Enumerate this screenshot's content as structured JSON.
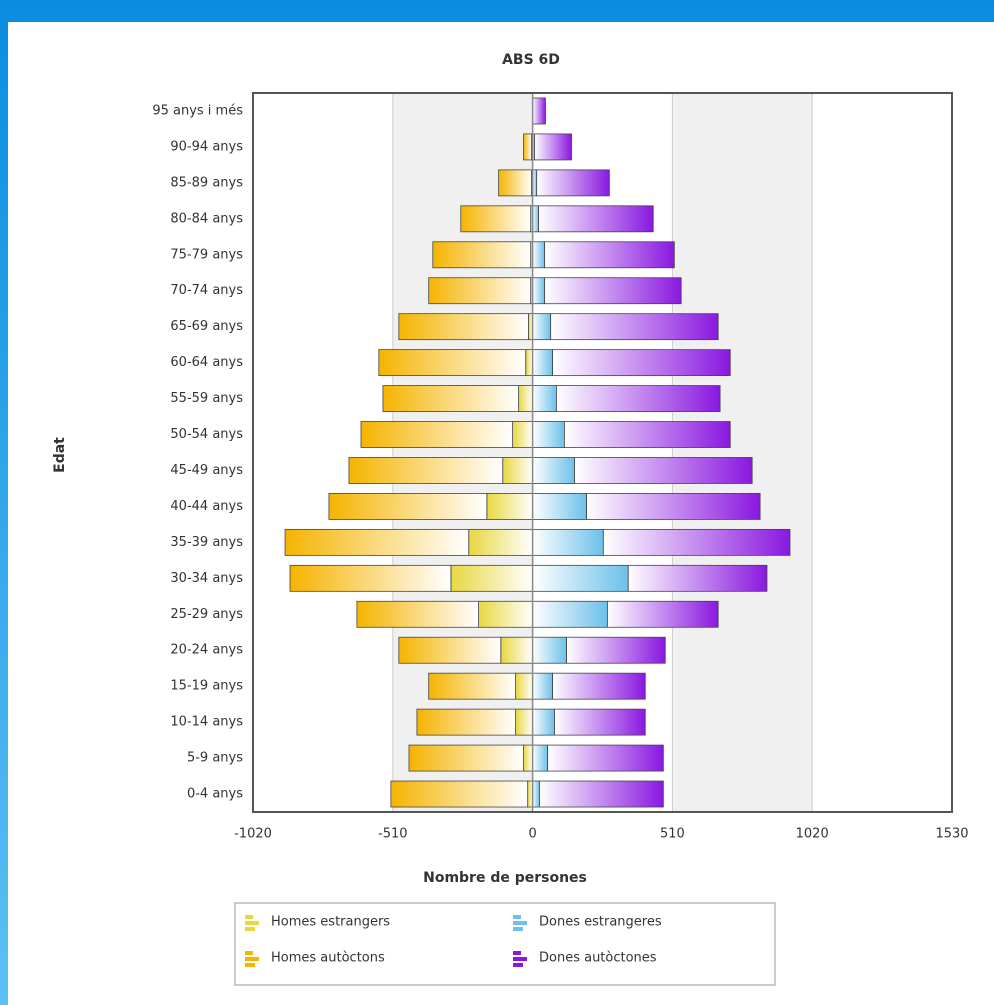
{
  "chart_data": {
    "type": "pyramid",
    "title": "ABS 6D",
    "y_label": "Edat",
    "x_label": "Nombre de persones",
    "categories": [
      "0-4 anys",
      "5-9 anys",
      "10-14 anys",
      "15-19 anys",
      "20-24 anys",
      "25-29 anys",
      "30-34 anys",
      "35-39 anys",
      "40-44 anys",
      "45-49 anys",
      "50-54 anys",
      "55-59 anys",
      "60-64 anys",
      "65-69 anys",
      "70-74 anys",
      "75-79 anys",
      "80-84 anys",
      "85-89 anys",
      "90-94 anys",
      "95 anys i més"
    ],
    "series": [
      {
        "name": "Homes estrangers",
        "color": "#e8d840",
        "stack": "homes",
        "values": [
          -18,
          -33,
          -62,
          -62,
          -116,
          -197,
          -298,
          -233,
          -167,
          -109,
          -73,
          -51,
          -25,
          -15,
          -7,
          -7,
          -7,
          -4,
          -4,
          0
        ]
      },
      {
        "name": "Dones estrangeres",
        "color": "#6cc0ea",
        "stack": "dones",
        "values": [
          25,
          55,
          80,
          73,
          124,
          273,
          349,
          258,
          197,
          153,
          116,
          87,
          73,
          66,
          44,
          44,
          22,
          15,
          7,
          0
        ]
      },
      {
        "name": "Homes autòctons",
        "color": "#f5b400",
        "stack": "homes",
        "values": [
          -499,
          -418,
          -360,
          -317,
          -372,
          -444,
          -587,
          -670,
          -576,
          -561,
          -553,
          -495,
          -536,
          -473,
          -372,
          -357,
          -255,
          -120,
          -29,
          0
        ]
      },
      {
        "name": "Dones autòctones",
        "color": "#8a18e0",
        "stack": "dones",
        "values": [
          452,
          422,
          331,
          338,
          360,
          404,
          506,
          681,
          633,
          648,
          605,
          597,
          648,
          611,
          498,
          473,
          418,
          265,
          135,
          47
        ]
      }
    ],
    "xlim": [
      -1020,
      1530
    ],
    "xticks": [
      -1020,
      -510,
      0,
      510,
      1020,
      1530
    ],
    "grid": true
  }
}
